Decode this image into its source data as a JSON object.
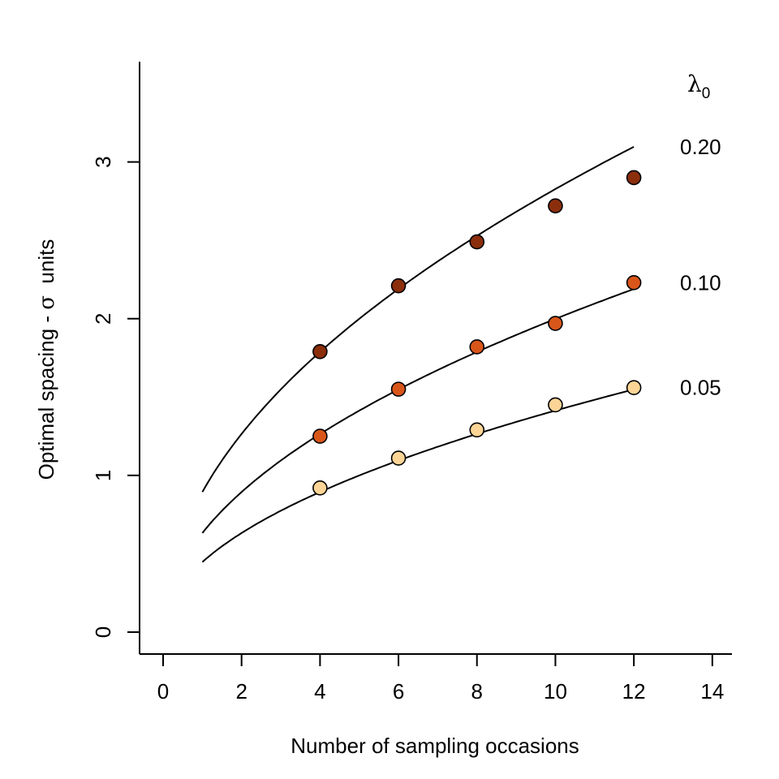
{
  "chart_data": {
    "type": "scatter",
    "title": "",
    "xlabel": "Number of sampling occasions",
    "ylabel_parts": [
      "Optimal spacing - ",
      "σ",
      "  units"
    ],
    "xlim": [
      -0.6,
      14.5
    ],
    "ylim": [
      -0.14,
      3.64
    ],
    "x_ticks": [
      0,
      2,
      4,
      6,
      8,
      10,
      12,
      14
    ],
    "y_ticks": [
      0,
      1,
      2,
      3
    ],
    "grid": false,
    "legend": {
      "title_symbol": "λ",
      "title_subscript": "0",
      "placement": "right"
    },
    "series": [
      {
        "name": "0.20",
        "color": "#8B2E0C",
        "points": {
          "x": [
            4,
            6,
            8,
            10,
            12
          ],
          "y": [
            1.79,
            2.21,
            2.49,
            2.72,
            2.9
          ]
        },
        "curve_coef": 0.894,
        "curve_x": [
          1,
          12
        ]
      },
      {
        "name": "0.10",
        "color": "#D9561A",
        "points": {
          "x": [
            4,
            6,
            8,
            10,
            12
          ],
          "y": [
            1.25,
            1.55,
            1.82,
            1.97,
            2.23
          ]
        },
        "curve_coef": 0.632,
        "curve_x": [
          1,
          12
        ]
      },
      {
        "name": "0.05",
        "color": "#FCD596",
        "points": {
          "x": [
            4,
            6,
            8,
            10,
            12
          ],
          "y": [
            0.92,
            1.11,
            1.29,
            1.45,
            1.56
          ]
        },
        "curve_coef": 0.447,
        "curve_x": [
          1,
          12
        ]
      }
    ]
  }
}
